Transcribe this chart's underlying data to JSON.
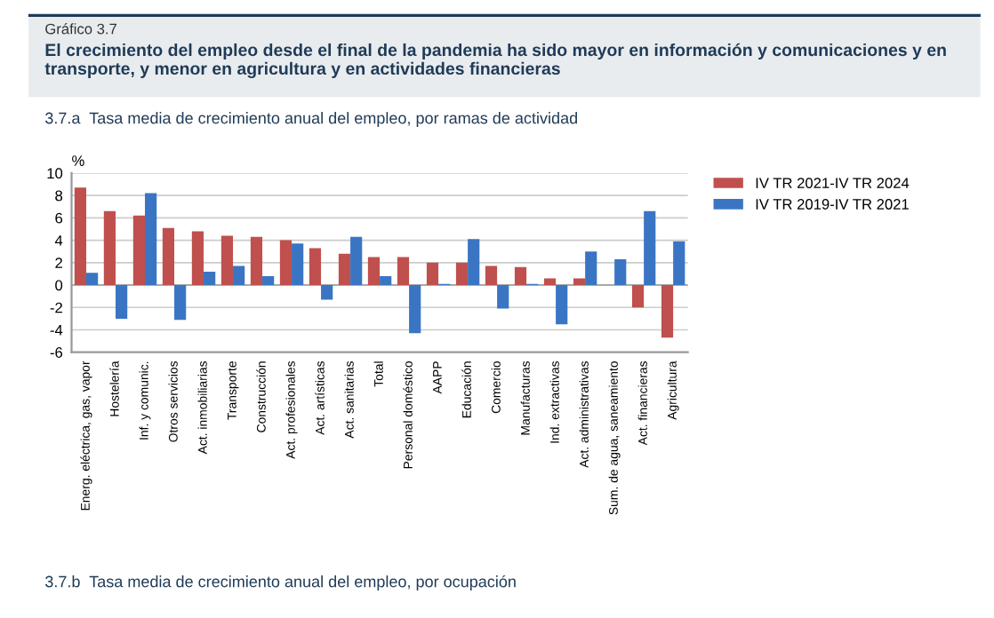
{
  "chart_data": {
    "type": "bar",
    "title": "El crecimiento del empleo desde el final de la pandemia ha sido mayor en información y comunicaciones y en transporte, y menor en agricultura y en actividades financieras",
    "subtitle": "3.7.a  Tasa media de crecimiento anual del empleo, por ramas de actividad",
    "ylabel": "%",
    "annotations": [
      "Gráfico 3.7",
      "3.7.b  Tasa media de crecimiento anual del empleo, por ocupación"
    ],
    "categories": [
      "Energ. eléctrica, gas, vapor",
      "Hostelería",
      "Inf. y comunic.",
      "Otros servicios",
      "Act. inmobiliarias",
      "Transporte",
      "Construcción",
      "Act. profesionales",
      "Act. artísticas",
      "Act. sanitarias",
      "Total",
      "Personal doméstico",
      "AAPP",
      "Educación",
      "Comercio",
      "Manufacturas",
      "Ind. extractivas",
      "Act. administrativas",
      "Sum. de agua, saneamiento",
      "Act. financieras",
      "Agricultura"
    ],
    "series": [
      {
        "name": "IV TR 2021-IV TR 2024",
        "color": "#c0504d",
        "values": [
          8.7,
          6.6,
          6.2,
          5.1,
          4.8,
          4.4,
          4.3,
          4.0,
          3.3,
          2.8,
          2.5,
          2.5,
          2.0,
          2.0,
          1.7,
          1.6,
          0.6,
          0.6,
          0.0,
          -2.0,
          -4.7
        ]
      },
      {
        "name": "IV TR 2019-IV TR 2021",
        "color": "#3a75c4",
        "values": [
          1.1,
          -3.0,
          8.2,
          -3.1,
          1.2,
          1.7,
          0.8,
          3.7,
          -1.3,
          4.3,
          0.8,
          -4.3,
          0.1,
          4.1,
          -2.1,
          0.1,
          -3.5,
          3.0,
          2.3,
          6.6,
          3.9
        ]
      }
    ],
    "ylim": [
      -6,
      10
    ],
    "yticks": [
      -6,
      -4,
      -2,
      0,
      2,
      4,
      6,
      8,
      10
    ],
    "grid": "y",
    "legend": "top right"
  }
}
